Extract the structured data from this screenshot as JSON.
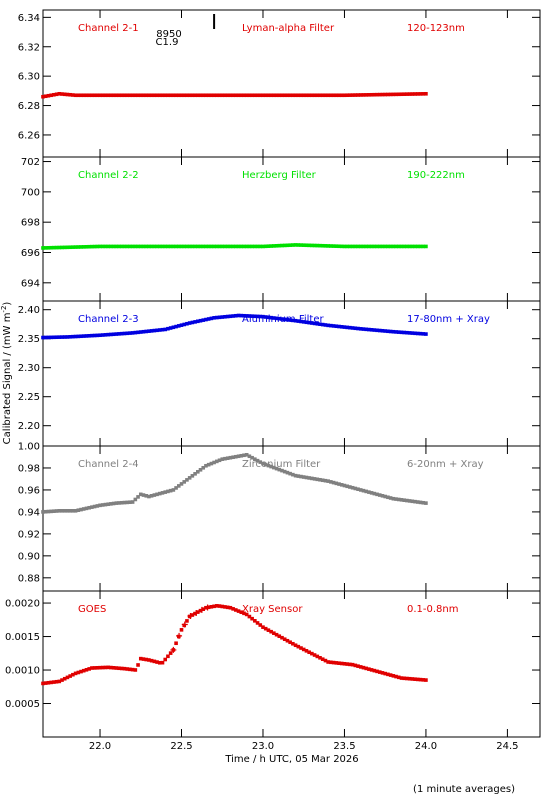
{
  "chart_data": {
    "type": "scatter",
    "x_axis": {
      "label": "Time / h UTC, 05 Mar 2026",
      "range": [
        21.65,
        24.7
      ],
      "ticks": [
        "22.0",
        "22.5",
        "23.0",
        "23.5",
        "24.0",
        "24.5"
      ],
      "tick_values": [
        22.0,
        22.5,
        23.0,
        23.5,
        24.0,
        24.5
      ]
    },
    "y_axis_label": "Calibrated Signal / (mW m",
    "y_axis_label_sup": "-2",
    "y_axis_label_end": ")",
    "note": "(1 minute averages)",
    "flare_annotation": {
      "number": "8950",
      "class": "C1.9",
      "time": 22.7
    },
    "panels": [
      {
        "channel": "Channel 2-1",
        "filter": "Lyman-alpha Filter",
        "band": "120-123nm",
        "color": "#e00000",
        "ylim": [
          6.245,
          6.345
        ],
        "y_ticks": [
          "6.26",
          "6.28",
          "6.30",
          "6.32",
          "6.34"
        ],
        "y_tick_values": [
          6.26,
          6.28,
          6.3,
          6.32,
          6.34
        ],
        "series": {
          "x": [
            21.65,
            21.75,
            21.85,
            22.0,
            22.5,
            23.0,
            23.5,
            24.0
          ],
          "y": [
            6.286,
            6.288,
            6.287,
            6.287,
            6.287,
            6.287,
            6.287,
            6.288
          ]
        }
      },
      {
        "channel": "Channel 2-2",
        "filter": "Herzberg Filter",
        "band": "190-222nm",
        "color": "#00e000",
        "ylim": [
          692.8,
          702.3
        ],
        "y_ticks": [
          "694",
          "696",
          "698",
          "700",
          "702"
        ],
        "y_tick_values": [
          694,
          696,
          698,
          700,
          702
        ],
        "series": {
          "x": [
            21.65,
            22.0,
            22.5,
            23.0,
            23.2,
            23.5,
            24.0
          ],
          "y": [
            696.3,
            696.4,
            696.4,
            696.4,
            696.5,
            696.4,
            696.4
          ]
        }
      },
      {
        "channel": "Channel 2-3",
        "filter": "Aluminium Filter",
        "band": "17-80nm + Xray",
        "color": "#0000e0",
        "ylim": [
          2.165,
          2.415
        ],
        "y_ticks": [
          "2.20",
          "2.25",
          "2.30",
          "2.35",
          "2.40"
        ],
        "y_tick_values": [
          2.2,
          2.25,
          2.3,
          2.35,
          2.4
        ],
        "series": {
          "x": [
            21.65,
            21.8,
            22.0,
            22.2,
            22.4,
            22.55,
            22.7,
            22.85,
            23.0,
            23.2,
            23.4,
            23.6,
            23.8,
            24.0
          ],
          "y": [
            2.352,
            2.353,
            2.356,
            2.36,
            2.366,
            2.377,
            2.386,
            2.39,
            2.388,
            2.381,
            2.373,
            2.367,
            2.362,
            2.358
          ]
        }
      },
      {
        "channel": "Channel 2-4",
        "filter": "Zirconium Filter",
        "band": "6-20nm + Xray",
        "color": "#808080",
        "ylim": [
          0.868,
          1.0
        ],
        "y_ticks": [
          "0.88",
          "0.90",
          "0.92",
          "0.94",
          "0.96",
          "0.98",
          "1.00"
        ],
        "y_tick_values": [
          0.88,
          0.9,
          0.92,
          0.94,
          0.96,
          0.98,
          1.0
        ],
        "series": {
          "x": [
            21.65,
            21.75,
            21.85,
            22.0,
            22.1,
            22.2,
            22.25,
            22.3,
            22.45,
            22.55,
            22.65,
            22.75,
            22.9,
            23.0,
            23.2,
            23.4,
            23.6,
            23.8,
            24.0
          ],
          "y": [
            0.94,
            0.941,
            0.941,
            0.946,
            0.948,
            0.949,
            0.956,
            0.954,
            0.96,
            0.971,
            0.982,
            0.988,
            0.992,
            0.984,
            0.973,
            0.968,
            0.96,
            0.952,
            0.948
          ]
        }
      },
      {
        "channel": "GOES",
        "filter": "Xray Sensor",
        "band": "0.1-0.8nm",
        "color": "#e00000",
        "ylim": [
          0.0,
          0.00218
        ],
        "y_ticks": [
          "0.0005",
          "0.0010",
          "0.0015",
          "0.0020"
        ],
        "y_tick_values": [
          0.0005,
          0.001,
          0.0015,
          0.002
        ],
        "series": {
          "x": [
            21.65,
            21.75,
            21.85,
            21.95,
            22.05,
            22.15,
            22.22,
            22.25,
            22.3,
            22.38,
            22.45,
            22.5,
            22.55,
            22.65,
            22.72,
            22.8,
            22.9,
            23.0,
            23.2,
            23.4,
            23.55,
            23.7,
            23.85,
            24.0
          ],
          "y": [
            0.0008,
            0.00083,
            0.00095,
            0.00103,
            0.00104,
            0.00102,
            0.001,
            0.00117,
            0.00115,
            0.0011,
            0.0013,
            0.0016,
            0.0018,
            0.00193,
            0.00196,
            0.00193,
            0.00183,
            0.00164,
            0.00137,
            0.00112,
            0.00108,
            0.00098,
            0.00088,
            0.00085
          ]
        }
      }
    ]
  }
}
